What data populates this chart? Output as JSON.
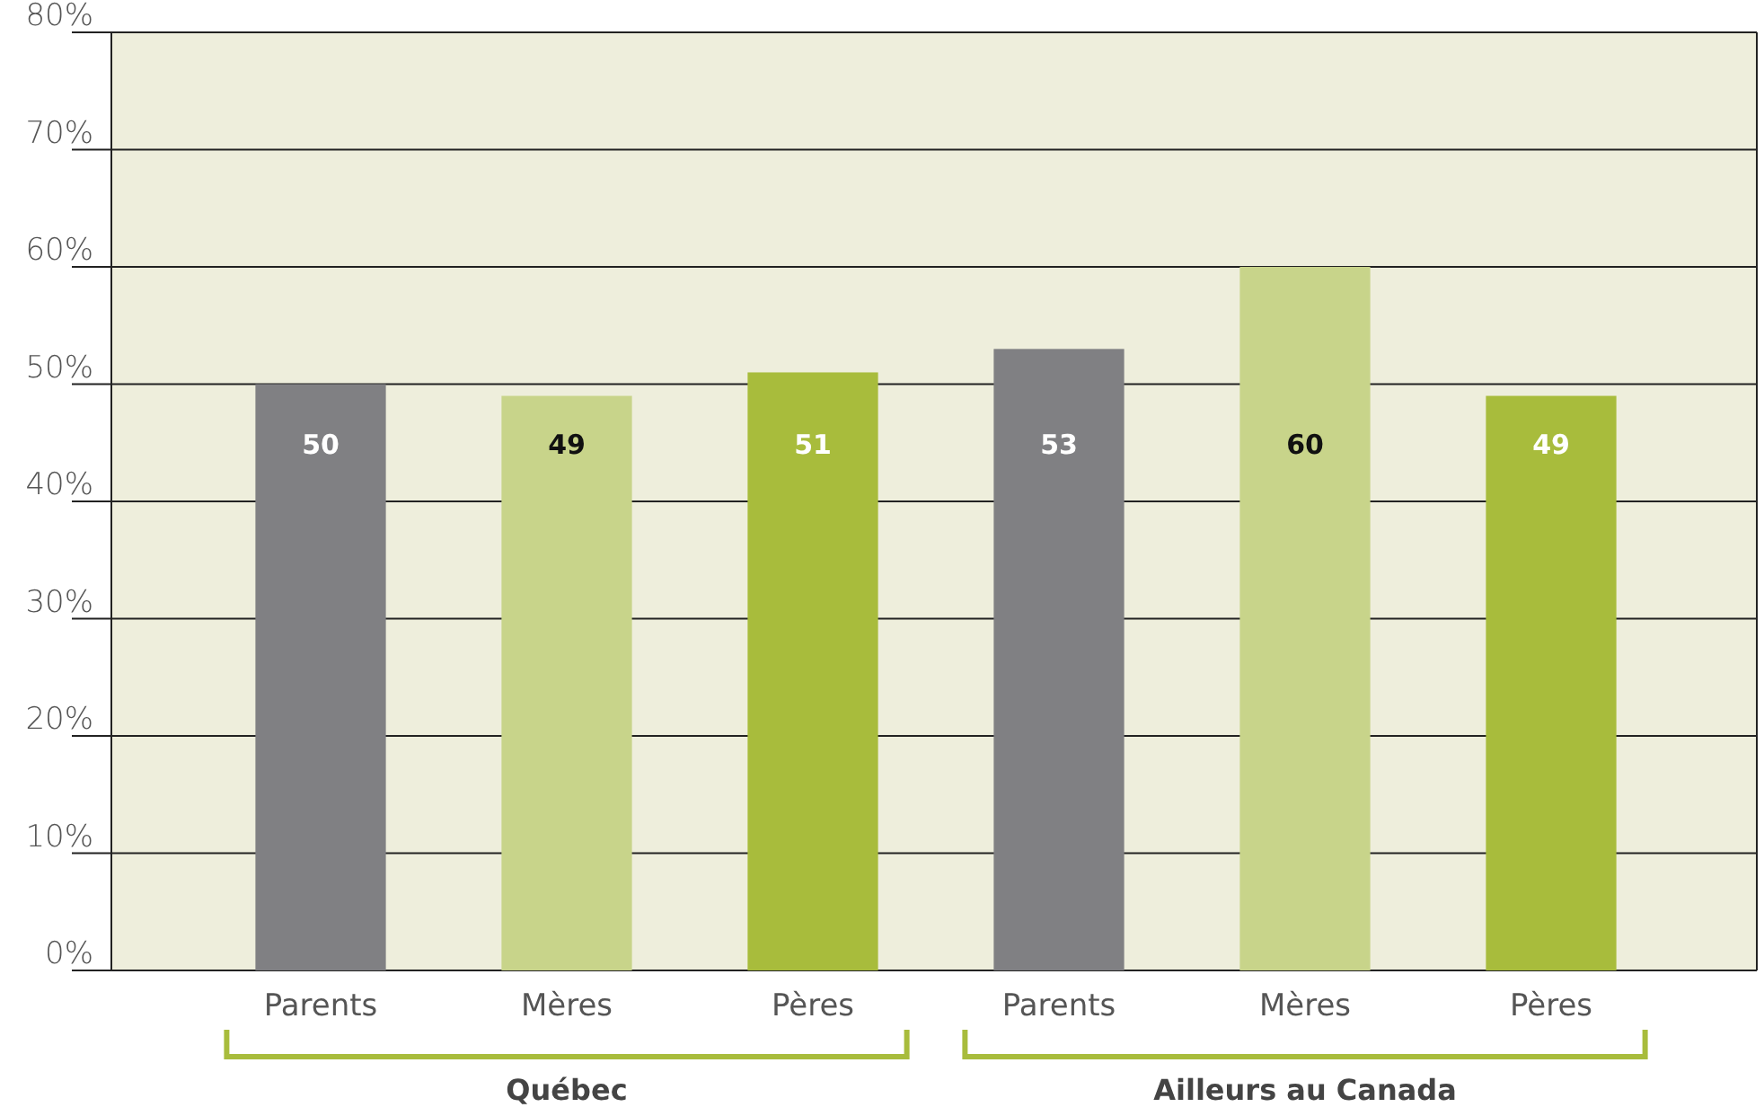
{
  "chart_data": {
    "type": "bar",
    "categories": [
      "Parents",
      "Mères",
      "Pères",
      "Parents",
      "Mères",
      "Pères"
    ],
    "values": [
      50,
      49,
      51,
      53,
      60,
      49
    ],
    "colors": [
      "#808083",
      "#c8d48a",
      "#a8bc3c",
      "#808083",
      "#c8d48a",
      "#a8bc3c"
    ],
    "ylim": [
      0,
      80
    ],
    "yticks": [
      {
        "value": 0,
        "label": "0%"
      },
      {
        "value": 10,
        "label": "10%"
      },
      {
        "value": 20,
        "label": "20%"
      },
      {
        "value": 30,
        "label": "30%"
      },
      {
        "value": 40,
        "label": "40%"
      },
      {
        "value": 50,
        "label": "50%"
      },
      {
        "value": 60,
        "label": "60%"
      },
      {
        "value": 70,
        "label": "70%"
      },
      {
        "value": 80,
        "label": "80%"
      }
    ],
    "grid": "y",
    "data_labels": true,
    "annotations": [
      "Québec",
      "Ailleurs au Canada"
    ]
  }
}
